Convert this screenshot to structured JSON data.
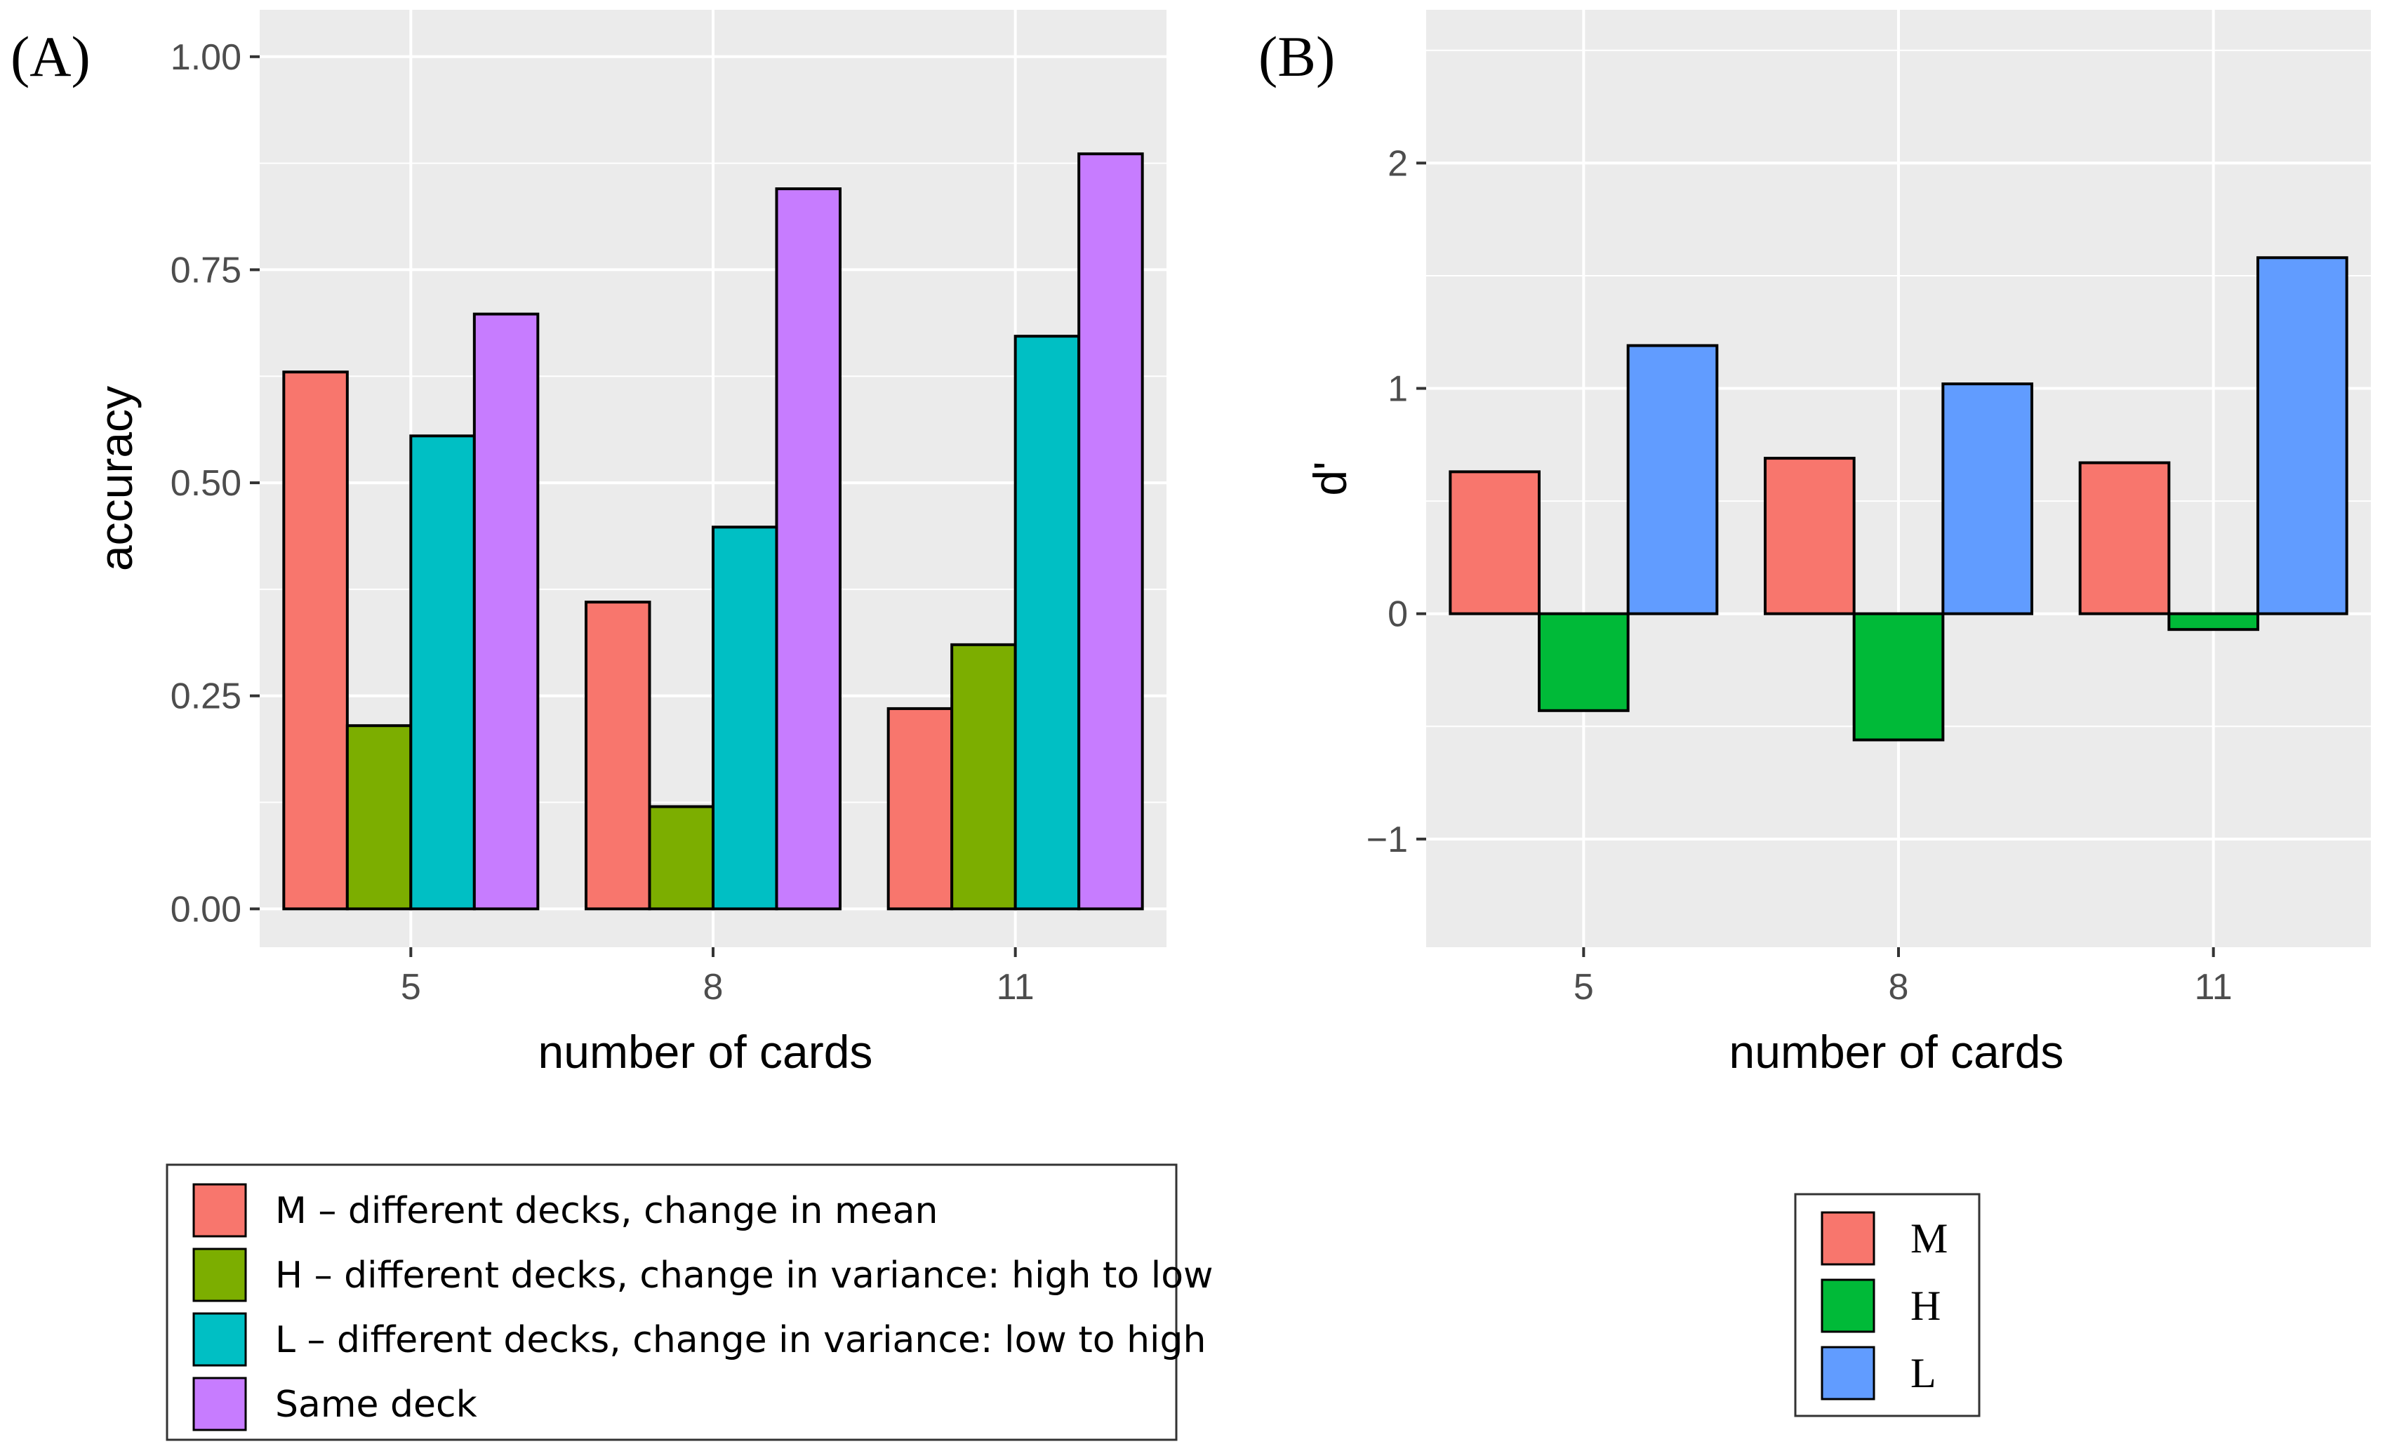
{
  "chart_data": [
    {
      "panel_label": "(A)",
      "type": "bar",
      "categories": [
        "5",
        "8",
        "11"
      ],
      "series": [
        {
          "name": "M",
          "values": [
            0.63,
            0.36,
            0.235
          ],
          "color": "#F8766D"
        },
        {
          "name": "H",
          "values": [
            0.215,
            0.12,
            0.31
          ],
          "color": "#7CAE00"
        },
        {
          "name": "L",
          "values": [
            0.555,
            0.448,
            0.672
          ],
          "color": "#00BFC4"
        },
        {
          "name": "Same deck",
          "values": [
            0.698,
            0.845,
            0.886
          ],
          "color": "#C77CFF"
        }
      ],
      "xlabel": "number of cards",
      "ylabel": "accuracy",
      "ylim": [
        -0.045,
        1.055
      ],
      "yticks": [
        0,
        0.25,
        0.5,
        0.75,
        1
      ],
      "ytick_labels": [
        "0.00",
        "0.25",
        "0.50",
        "0.75",
        "1.00"
      ],
      "grid": true,
      "legend": {
        "position": "bottom",
        "entries": [
          "M – different decks, change in mean",
          "H – different decks, change in variance: high to low",
          "L – different decks, change in variance: low to high",
          "Same deck"
        ]
      }
    },
    {
      "panel_label": "(B)",
      "type": "bar",
      "categories": [
        "5",
        "8",
        "11"
      ],
      "series": [
        {
          "name": "M",
          "values": [
            0.63,
            0.69,
            0.67
          ],
          "color": "#F8766D"
        },
        {
          "name": "H",
          "values": [
            -0.43,
            -0.56,
            -0.07
          ],
          "color": "#00BA38"
        },
        {
          "name": "L",
          "values": [
            1.19,
            1.02,
            1.58
          ],
          "color": "#619CFF"
        }
      ],
      "xlabel": "number of cards",
      "ylabel": "d'",
      "ylim": [
        -1.48,
        2.68
      ],
      "yticks": [
        -1,
        0,
        1,
        2
      ],
      "ytick_labels": [
        "−1",
        "0",
        "1",
        "2"
      ],
      "grid": true,
      "legend": {
        "position": "bottom",
        "entries": [
          "M",
          "H",
          "L"
        ]
      }
    }
  ],
  "style": {
    "panel_bg": "#EBEBEB",
    "grid_color": "#FFFFFF",
    "bar_outline": "#000000"
  }
}
